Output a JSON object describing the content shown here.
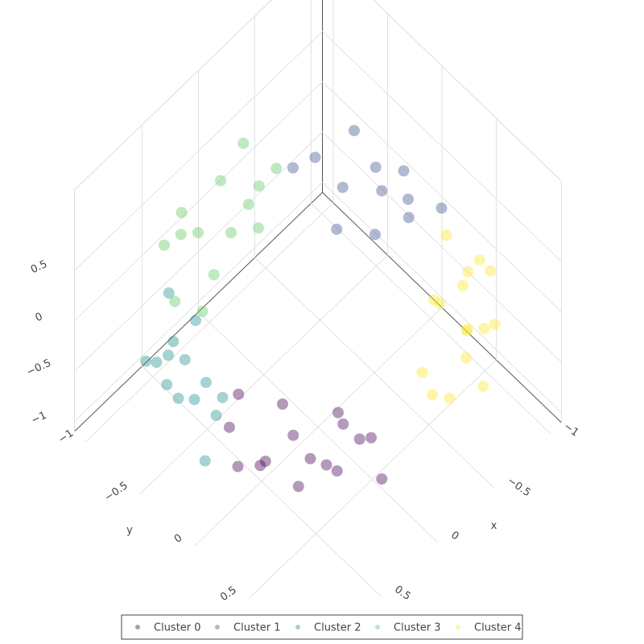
{
  "chart_data": {
    "type": "scatter3d",
    "xlim": [
      -1.1,
      1.1
    ],
    "ylim": [
      -1.1,
      1.1
    ],
    "zlim": [
      -1.1,
      1.3
    ],
    "xticks": [
      {
        "value": -1,
        "label": "−1"
      },
      {
        "value": -0.5,
        "label": "−0.5"
      },
      0,
      0.5
    ],
    "yticks": [
      {
        "value": -1,
        "label": "−1"
      },
      {
        "value": -0.5,
        "label": "−0.5"
      },
      0,
      0.5
    ],
    "zticks": [
      {
        "value": -1,
        "label": "−1"
      },
      {
        "value": -0.5,
        "label": "−0.5"
      },
      0,
      0.5
    ],
    "xlabel": "x",
    "ylabel": "y",
    "grid": true,
    "legend": "bottom",
    "opacity": 0.4,
    "series": [
      {
        "name": "Cluster 0",
        "color": "#440154",
        "x": [
          0.95,
          0.85,
          0.75,
          0.6,
          0.45,
          0.35,
          0.9,
          0.7,
          0.55,
          0.8,
          0.5,
          1.0,
          0.65,
          0.4,
          0.85,
          0.3
        ],
        "y": [
          0.17,
          0.35,
          0.55,
          0.7,
          0.85,
          0.95,
          0.45,
          0.4,
          0.5,
          0.65,
          0.75,
          0.3,
          0.85,
          0.6,
          0.15,
          0.8
        ],
        "z": [
          0.1,
          -0.2,
          0.2,
          -0.1,
          0.15,
          -0.25,
          0.0,
          0.3,
          -0.3,
          -0.15,
          0.25,
          -0.1,
          0.05,
          0.1,
          0.3,
          -0.05
        ]
      },
      {
        "name": "Cluster 1",
        "color": "#3b528b",
        "x": [
          -1.0,
          -0.95,
          -0.85,
          -0.75,
          -0.65,
          -0.8,
          -0.6,
          -1.05,
          -0.9,
          -0.7,
          -0.55,
          -1.0
        ],
        "y": [
          0.1,
          -0.15,
          -0.35,
          -0.55,
          -0.7,
          0.0,
          -0.45,
          -0.3,
          -0.6,
          -0.2,
          -0.8,
          -0.45
        ],
        "z": [
          0.1,
          -0.2,
          0.2,
          -0.1,
          0.15,
          0.3,
          -0.25,
          0.0,
          0.25,
          -0.15,
          0.05,
          -0.3
        ]
      },
      {
        "name": "Cluster 2",
        "color": "#21918c",
        "x": [
          0.6,
          0.75,
          0.85,
          0.95,
          1.0,
          1.05,
          0.7,
          0.8,
          0.9,
          1.1,
          0.65,
          0.95,
          1.0,
          0.75
        ],
        "y": [
          -0.75,
          -0.6,
          -0.45,
          -0.3,
          -0.1,
          0.05,
          -0.4,
          -0.2,
          -0.65,
          -0.25,
          -0.55,
          -0.5,
          0.1,
          -0.1
        ],
        "z": [
          0.1,
          -0.2,
          0.2,
          -0.1,
          0.15,
          -0.25,
          0.3,
          0.0,
          -0.15,
          0.25,
          -0.3,
          0.05,
          0.2,
          -0.1
        ]
      },
      {
        "name": "Cluster 3",
        "color": "#5ec962",
        "x": [
          -0.45,
          -0.3,
          -0.1,
          0.1,
          0.3,
          0.45,
          -0.2,
          0.0,
          0.2,
          -0.35,
          0.15,
          0.35,
          -0.05,
          0.4
        ],
        "y": [
          -0.85,
          -0.95,
          -1.0,
          -1.0,
          -0.95,
          -0.85,
          -0.75,
          -0.8,
          -0.75,
          -1.05,
          -1.1,
          -0.7,
          -0.6,
          -1.0
        ],
        "z": [
          0.1,
          -0.2,
          0.2,
          -0.1,
          0.15,
          -0.25,
          0.3,
          0.0,
          -0.15,
          0.25,
          0.05,
          -0.3,
          0.2,
          0.1
        ]
      },
      {
        "name": "Cluster 4",
        "color": "#fde725",
        "x": [
          -0.1,
          -0.3,
          -0.5,
          -0.65,
          -0.8,
          -0.9,
          -0.45,
          -0.6,
          -0.75,
          -0.35,
          -0.95,
          -0.55,
          -0.85,
          -0.25,
          -0.7,
          -1.0
        ],
        "y": [
          0.95,
          0.9,
          0.85,
          0.7,
          0.55,
          0.4,
          0.6,
          0.5,
          0.75,
          1.0,
          0.6,
          0.95,
          0.3,
          0.7,
          0.9,
          0.45
        ],
        "z": [
          0.1,
          -0.2,
          0.2,
          -0.1,
          0.15,
          -0.25,
          0.3,
          0.0,
          -0.15,
          0.25,
          0.05,
          -0.3,
          0.2,
          -0.1,
          0.1,
          -0.05
        ]
      }
    ]
  }
}
